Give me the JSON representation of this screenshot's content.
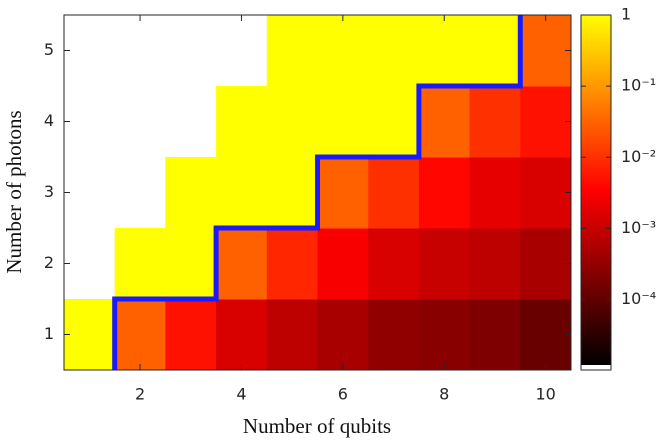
{
  "chart_data": {
    "type": "heatmap",
    "xlabel": "Number of qubits",
    "ylabel": "Number of photons",
    "x": [
      1,
      2,
      3,
      4,
      5,
      6,
      7,
      8,
      9,
      10
    ],
    "y": [
      1,
      2,
      3,
      4,
      5
    ],
    "z": [
      [
        1,
        0.03,
        0.005,
        0.0015,
        0.0008,
        0.0005,
        0.0003,
        0.00025,
        0.0002,
        0.00012
      ],
      [
        null,
        1,
        1,
        0.03,
        0.008,
        0.003,
        0.0015,
        0.001,
        0.0008,
        0.0005
      ],
      [
        null,
        null,
        1,
        1,
        1,
        0.03,
        0.01,
        0.004,
        0.002,
        0.0015
      ],
      [
        null,
        null,
        null,
        1,
        1,
        1,
        1,
        0.03,
        0.01,
        0.005
      ],
      [
        null,
        null,
        null,
        null,
        1,
        1,
        1,
        1,
        1,
        0.03
      ]
    ],
    "xlim": [
      0.5,
      10.5
    ],
    "ylim": [
      0.5,
      5.5
    ],
    "xticks": [
      2,
      4,
      6,
      8,
      10
    ],
    "yticks": [
      1,
      2,
      3,
      4,
      5
    ],
    "colormap": [
      "#000000",
      "#ff0000",
      "#ffff00"
    ],
    "color_scale": "log",
    "clim": [
      1.2e-05,
      1
    ],
    "cticks": [
      1,
      {
        "value": 0.1,
        "label": "10⁻¹"
      },
      {
        "value": 0.01,
        "label": "10⁻²"
      },
      {
        "value": 0.001,
        "label": "10⁻³"
      },
      {
        "value": 0.0001,
        "label": "10⁻⁴"
      }
    ],
    "boundary_color": "#1a1aff"
  }
}
